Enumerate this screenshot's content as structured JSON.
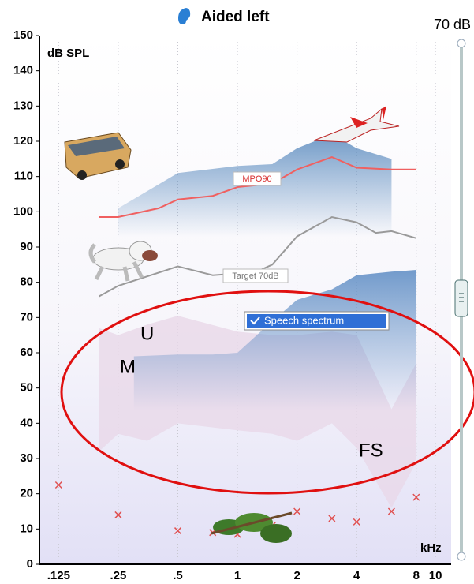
{
  "chart_data": {
    "type": "line",
    "title": "Aided left",
    "level_label": "70 dB",
    "ylabel": "dB SPL",
    "xlabel": "kHz",
    "xscale": "log",
    "xlim": [
      0.1,
      12
    ],
    "ylim": [
      0,
      150
    ],
    "xticks": [
      {
        "value": 0.125,
        "label": ".125"
      },
      {
        "value": 0.25,
        "label": ".25"
      },
      {
        "value": 0.5,
        "label": ".5"
      },
      1,
      2,
      4,
      8,
      10
    ],
    "yticks": [
      0,
      10,
      20,
      30,
      40,
      50,
      60,
      70,
      80,
      90,
      100,
      110,
      120,
      130,
      140,
      150
    ],
    "grid": "x",
    "series": [
      {
        "kind": "area",
        "color": "#4a7fb8",
        "x": [
          0.25,
          0.5,
          1,
          1.5,
          2,
          3,
          4,
          6
        ],
        "values": [
          101,
          111,
          113,
          113.5,
          118,
          122,
          118,
          115
        ]
      },
      {
        "kind": "band",
        "name": "Speech spectrum",
        "color": "#e8d8e8",
        "x": [
          0.2,
          0.25,
          0.35,
          0.5,
          1,
          1.5,
          2,
          3,
          4,
          6,
          8
        ],
        "values": [
          67,
          65,
          68,
          70.5,
          66,
          65,
          65,
          66,
          65,
          44,
          57
        ],
        "lower": [
          32,
          37,
          35,
          40,
          38,
          37,
          35,
          40,
          33,
          16,
          29
        ]
      },
      {
        "kind": "area",
        "color": "#5d8cc4",
        "x": [
          0.3,
          0.5,
          0.75,
          1,
          1.5,
          2,
          3,
          4,
          6,
          8
        ],
        "values": [
          59,
          59.5,
          59.5,
          60,
          69,
          75,
          78,
          82,
          83,
          83.5
        ]
      },
      {
        "kind": "line",
        "name": "MPO90",
        "color": "#f06060",
        "x": [
          0.2,
          0.25,
          0.4,
          0.5,
          0.75,
          1,
          1.5,
          2,
          3,
          4,
          6,
          8
        ],
        "values": [
          98.5,
          98.5,
          101,
          103.5,
          104.5,
          107,
          108,
          112,
          115.5,
          112.5,
          112,
          112
        ]
      },
      {
        "kind": "line",
        "name": "Target 70dB",
        "color": "#9a9a9a",
        "x": [
          0.2,
          0.25,
          0.5,
          0.75,
          1,
          1.25,
          1.5,
          2,
          3,
          4,
          5,
          6,
          8
        ],
        "values": [
          76,
          79,
          84.5,
          82,
          82.5,
          83,
          85,
          93,
          98.5,
          97,
          94,
          94.5,
          92.5
        ]
      },
      {
        "kind": "marker",
        "color": "#e05050",
        "x": [
          0.125,
          0.25,
          0.5,
          0.75,
          1,
          1.5,
          2,
          3,
          4,
          6,
          8
        ],
        "values": [
          22.5,
          14,
          9.5,
          9,
          8.5,
          11,
          15,
          13,
          12,
          15,
          19
        ]
      }
    ]
  }
}
